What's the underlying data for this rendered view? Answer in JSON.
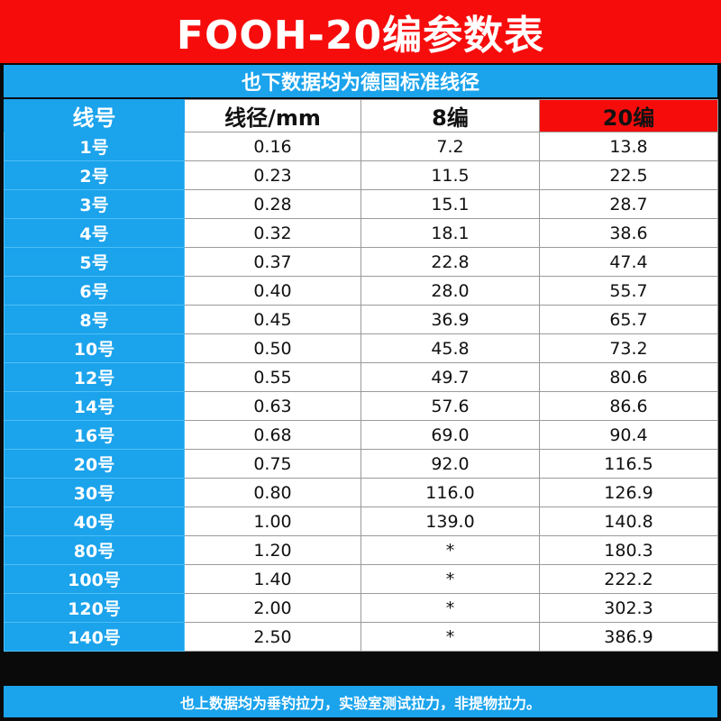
{
  "title": "FOOH-20编参数表",
  "subtitle": "也下数据均为德国标准线径",
  "table": {
    "headers": {
      "number": "线号",
      "diameter": "线径/mm",
      "braid8": "8编",
      "braid20": "20编"
    },
    "rows": [
      {
        "number": "1号",
        "diameter": "0.16",
        "braid8": "7.2",
        "braid20": "13.8"
      },
      {
        "number": "2号",
        "diameter": "0.23",
        "braid8": "11.5",
        "braid20": "22.5"
      },
      {
        "number": "3号",
        "diameter": "0.28",
        "braid8": "15.1",
        "braid20": "28.7"
      },
      {
        "number": "4号",
        "diameter": "0.32",
        "braid8": "18.1",
        "braid20": "38.6"
      },
      {
        "number": "5号",
        "diameter": "0.37",
        "braid8": "22.8",
        "braid20": "47.4"
      },
      {
        "number": "6号",
        "diameter": "0.40",
        "braid8": "28.0",
        "braid20": "55.7"
      },
      {
        "number": "8号",
        "diameter": "0.45",
        "braid8": "36.9",
        "braid20": "65.7"
      },
      {
        "number": "10号",
        "diameter": "0.50",
        "braid8": "45.8",
        "braid20": "73.2"
      },
      {
        "number": "12号",
        "diameter": "0.55",
        "braid8": "49.7",
        "braid20": "80.6"
      },
      {
        "number": "14号",
        "diameter": "0.63",
        "braid8": "57.6",
        "braid20": "86.6"
      },
      {
        "number": "16号",
        "diameter": "0.68",
        "braid8": "69.0",
        "braid20": "90.4"
      },
      {
        "number": "20号",
        "diameter": "0.75",
        "braid8": "92.0",
        "braid20": "116.5"
      },
      {
        "number": "30号",
        "diameter": "0.80",
        "braid8": "116.0",
        "braid20": "126.9"
      },
      {
        "number": "40号",
        "diameter": "1.00",
        "braid8": "139.0",
        "braid20": "140.8"
      },
      {
        "number": "80号",
        "diameter": "1.20",
        "braid8": "*",
        "braid20": "180.3"
      },
      {
        "number": "100号",
        "diameter": "1.40",
        "braid8": "*",
        "braid20": "222.2"
      },
      {
        "number": "120号",
        "diameter": "2.00",
        "braid8": "*",
        "braid20": "302.3"
      },
      {
        "number": "140号",
        "diameter": "2.50",
        "braid8": "*",
        "braid20": "386.9"
      }
    ]
  },
  "footer": "也上数据均为垂钓拉力，实验室测试拉力，非提物拉力。",
  "colors": {
    "title_red": "#f70c0c",
    "accent_blue": "#1ba3ec",
    "highlight_red": "#f70c0c"
  }
}
